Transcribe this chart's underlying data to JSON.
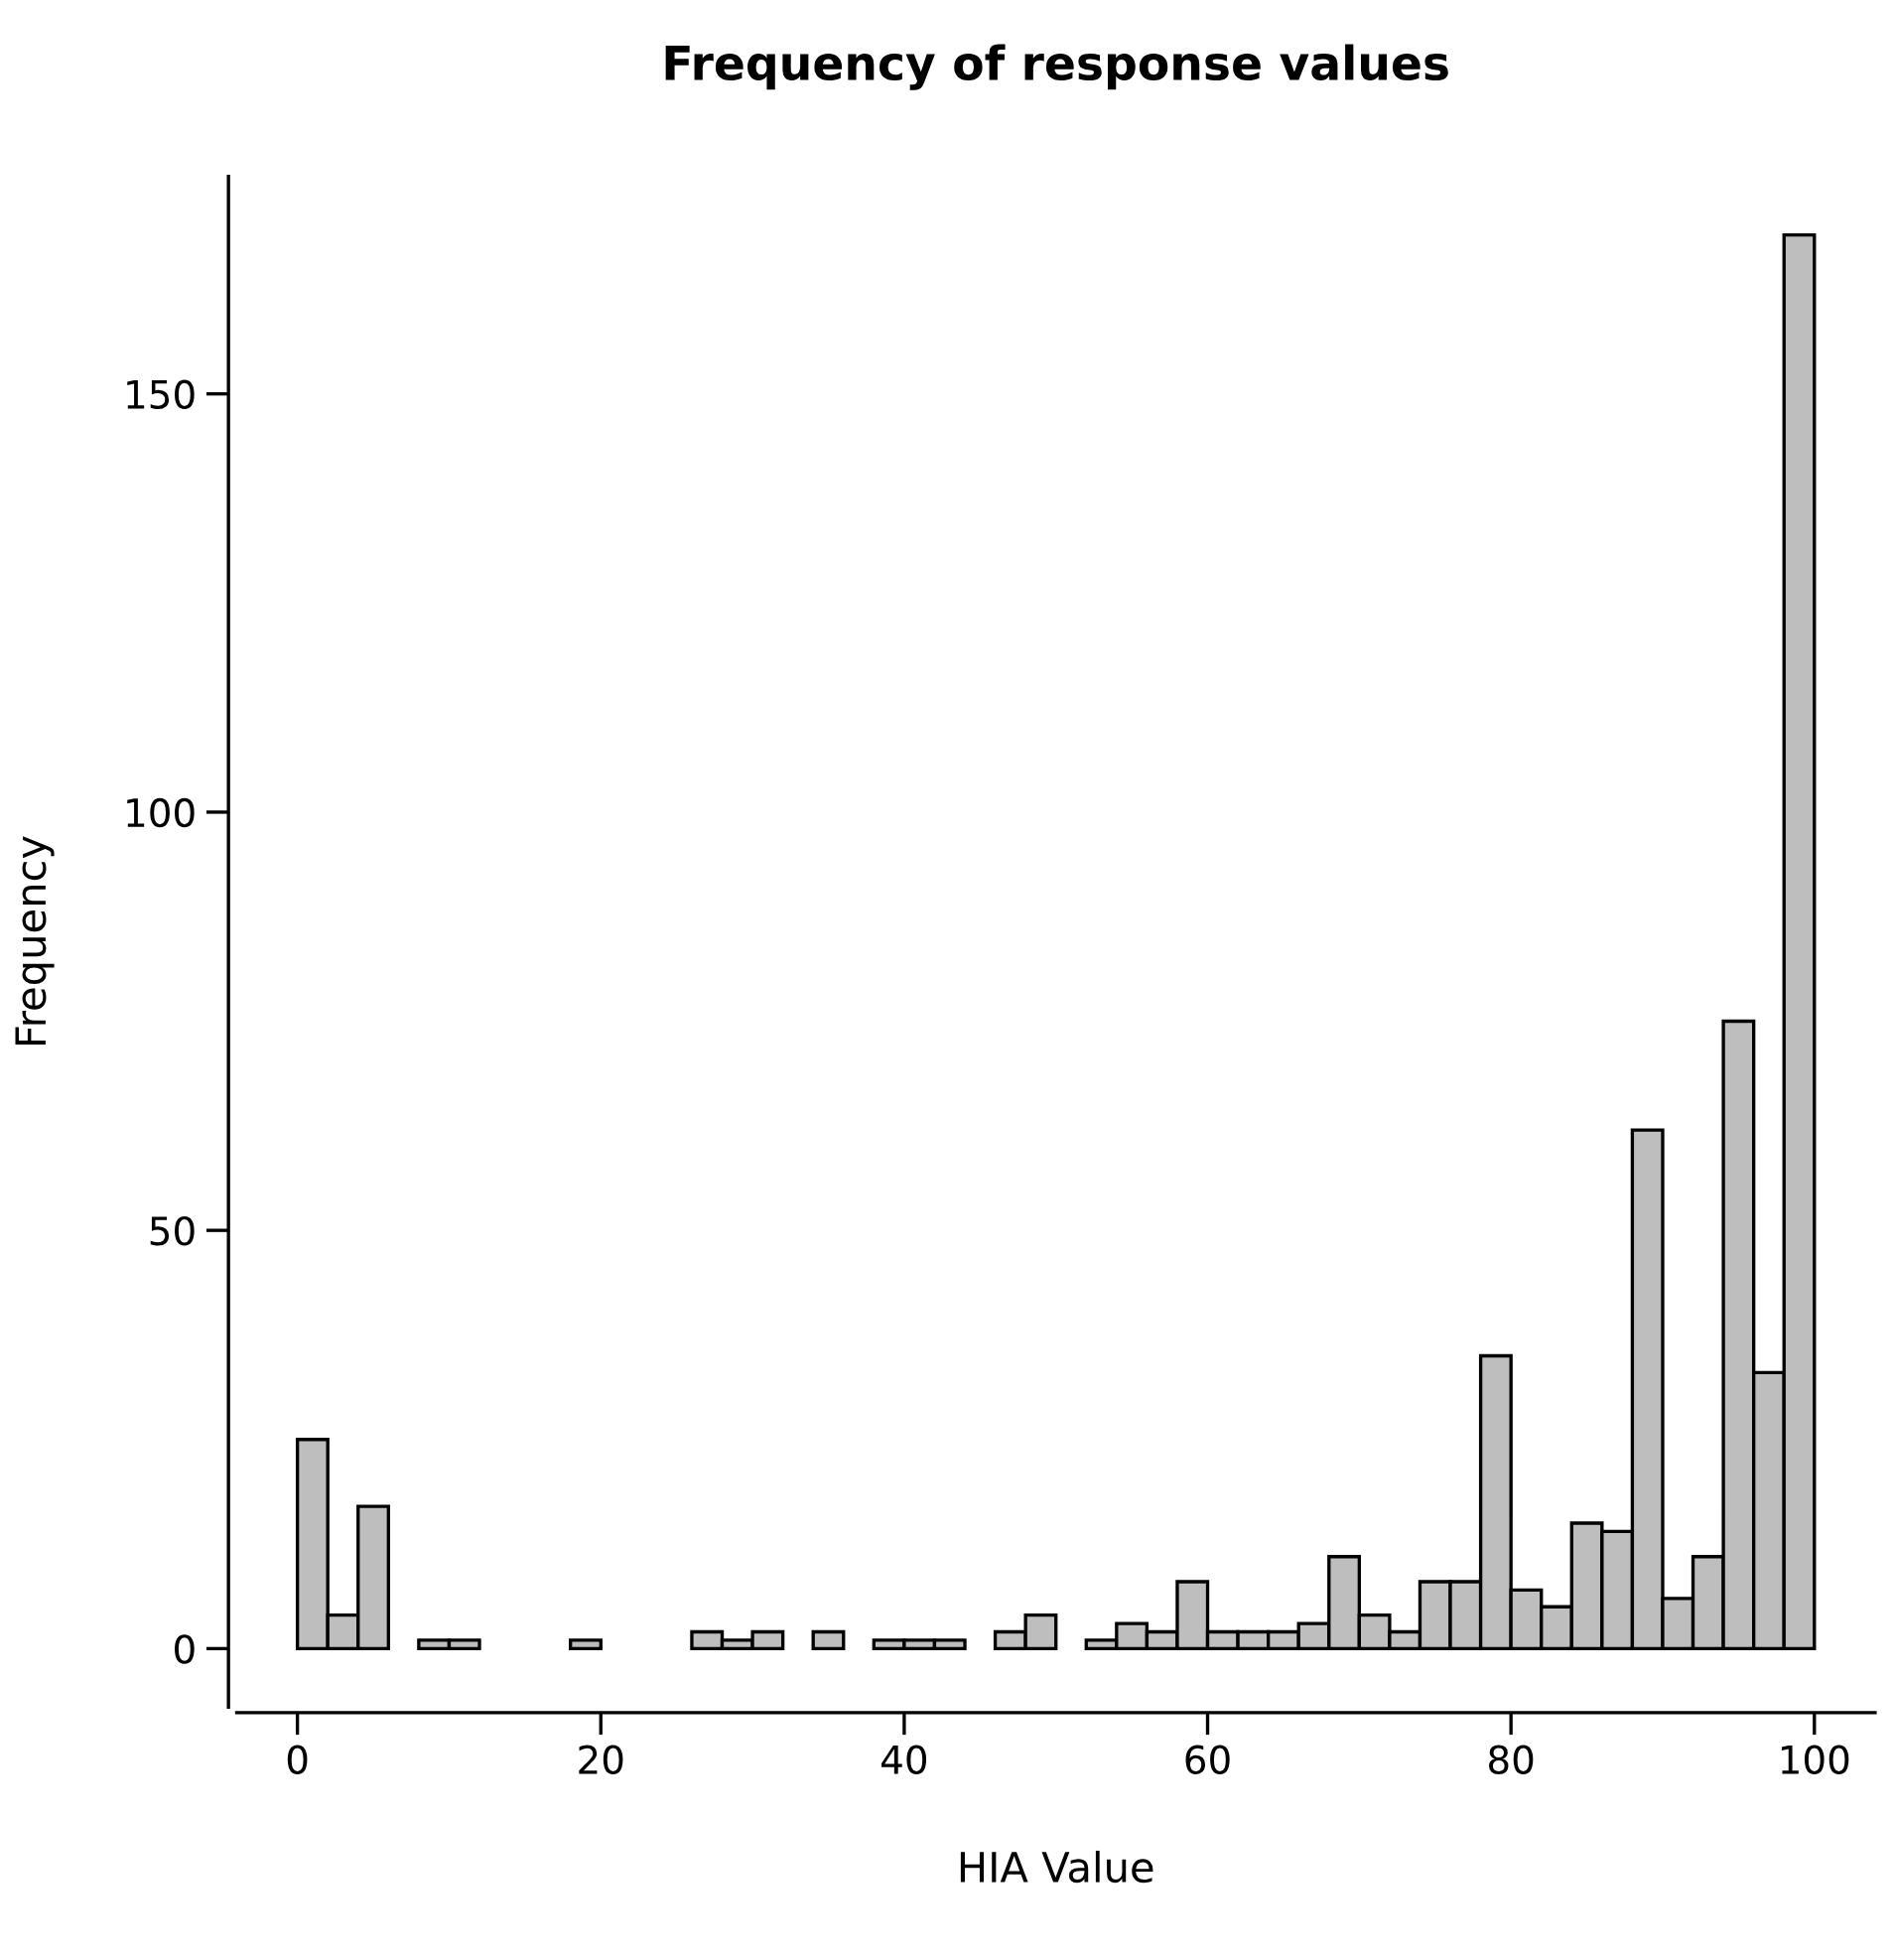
{
  "chart_data": {
    "type": "histogram",
    "title": "Frequency of response values",
    "xlabel": "HIA Value",
    "ylabel": "Frequency",
    "bins": [
      0,
      2,
      4,
      6,
      8,
      10,
      12,
      14,
      16,
      18,
      20,
      22,
      24,
      26,
      28,
      30,
      32,
      34,
      36,
      38,
      40,
      42,
      44,
      46,
      48,
      50,
      52,
      54,
      56,
      58,
      60,
      62,
      64,
      66,
      68,
      70,
      72,
      74,
      76,
      78,
      80,
      82,
      84,
      86,
      88,
      90,
      92,
      94,
      96,
      98,
      100
    ],
    "values": [
      25,
      4,
      17,
      0,
      1,
      1,
      0,
      0,
      0,
      1,
      0,
      0,
      0,
      2,
      1,
      2,
      0,
      2,
      0,
      1,
      1,
      1,
      0,
      2,
      4,
      0,
      1,
      3,
      2,
      8,
      2,
      2,
      2,
      3,
      11,
      4,
      2,
      8,
      8,
      35,
      7,
      5,
      15,
      14,
      62,
      6,
      11,
      75,
      33,
      169
    ],
    "color": "#bebebe",
    "xlim": [
      -4,
      104
    ],
    "ylim": [
      -7,
      176
    ],
    "xticks": [
      0,
      20,
      40,
      60,
      80,
      100
    ],
    "yticks": [
      0,
      50,
      100,
      150
    ],
    "grid": false
  }
}
